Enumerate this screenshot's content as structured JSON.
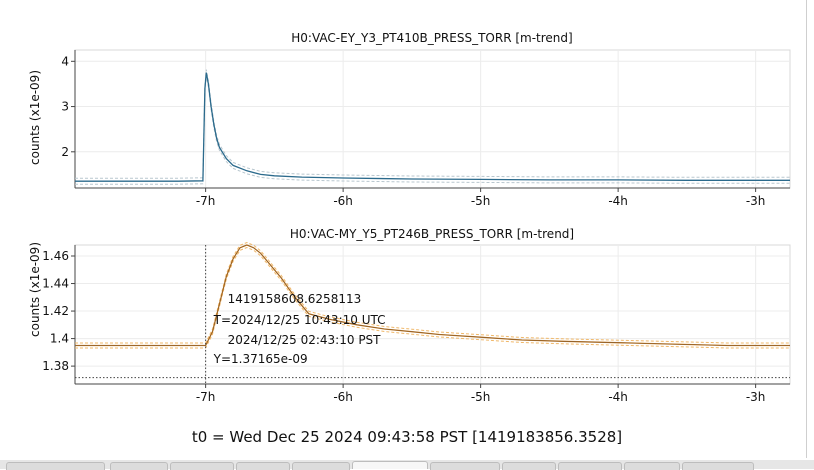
{
  "chart_data": [
    {
      "type": "line",
      "title": "H0:VAC-EY_Y3_PT410B_PRESS_TORR [m-trend]",
      "ylabel": "counts (x1e-09)",
      "xlabel": "",
      "x_unit": "h",
      "xlim": [
        -7.95,
        -2.75
      ],
      "ylim": [
        1.2,
        4.25
      ],
      "x_ticks": [
        -7,
        -6,
        -5,
        -4,
        -3
      ],
      "x_tick_labels": [
        "-7h",
        "-6h",
        "-5h",
        "-4h",
        "-3h"
      ],
      "y_ticks": [
        2,
        3,
        4
      ],
      "y_tick_labels": [
        "2",
        "3",
        "4"
      ],
      "grid": true,
      "color": "#2b6a8c",
      "band_color": "#b9c7cf",
      "series": [
        {
          "x": [
            -7.95,
            -7.3,
            -7.2,
            -7.02,
            -7.005,
            -6.995,
            -6.98,
            -6.96,
            -6.94,
            -6.92,
            -6.9,
            -6.85,
            -6.8,
            -6.7,
            -6.6,
            -6.5,
            -6.3,
            -6.0,
            -5.5,
            -5.0,
            -4.5,
            -4.0,
            -3.5,
            -3.0,
            -2.75
          ],
          "values": [
            1.35,
            1.35,
            1.35,
            1.36,
            3.4,
            3.75,
            3.5,
            3.0,
            2.6,
            2.3,
            2.1,
            1.85,
            1.7,
            1.58,
            1.5,
            1.47,
            1.44,
            1.42,
            1.4,
            1.39,
            1.38,
            1.38,
            1.37,
            1.37,
            1.37
          ]
        }
      ]
    },
    {
      "type": "line",
      "title": "H0:VAC-MY_Y5_PT246B_PRESS_TORR [m-trend]",
      "ylabel": "counts (x1e-09)",
      "xlabel": "",
      "x_unit": "h",
      "xlim": [
        -7.95,
        -2.75
      ],
      "ylim": [
        1.367,
        1.468
      ],
      "x_ticks": [
        -7,
        -6,
        -5,
        -4,
        -3
      ],
      "x_tick_labels": [
        "-7h",
        "-6h",
        "-5h",
        "-4h",
        "-3h"
      ],
      "y_ticks": [
        1.38,
        1.4,
        1.42,
        1.44,
        1.46
      ],
      "y_tick_labels": [
        "1.38",
        "1.4",
        "1.42",
        "1.44",
        "1.46"
      ],
      "grid": true,
      "color": "#d98a2b",
      "dark_color": "#6b4a2a",
      "band_color": "#f0b86a",
      "cursor_x": -7.0,
      "cursor_y": 1.37165,
      "series": [
        {
          "x": [
            -7.95,
            -7.5,
            -7.2,
            -7.0,
            -6.95,
            -6.9,
            -6.85,
            -6.8,
            -6.75,
            -6.7,
            -6.65,
            -6.6,
            -6.55,
            -6.5,
            -6.45,
            -6.4,
            -6.35,
            -6.3,
            -6.25,
            -6.1,
            -5.9,
            -5.7,
            -5.5,
            -5.3,
            -5.0,
            -4.7,
            -4.4,
            -4.0,
            -3.6,
            -3.2,
            -2.75
          ],
          "values": [
            1.395,
            1.395,
            1.395,
            1.395,
            1.405,
            1.425,
            1.445,
            1.458,
            1.466,
            1.468,
            1.466,
            1.462,
            1.456,
            1.45,
            1.444,
            1.437,
            1.43,
            1.424,
            1.418,
            1.414,
            1.41,
            1.407,
            1.405,
            1.403,
            1.401,
            1.399,
            1.398,
            1.397,
            1.396,
            1.395,
            1.395
          ]
        }
      ],
      "annotation": {
        "gps": "1419158608.6258113",
        "utc": "T=2024/12/25 10:43:10 UTC",
        "pst": "2024/12/25 02:43:10 PST",
        "y": "Y=1.37165e-09"
      }
    }
  ],
  "footer": {
    "t0": "t0 = Wed Dec 25 2024 09:43:58 PST [1419183856.3528]"
  }
}
